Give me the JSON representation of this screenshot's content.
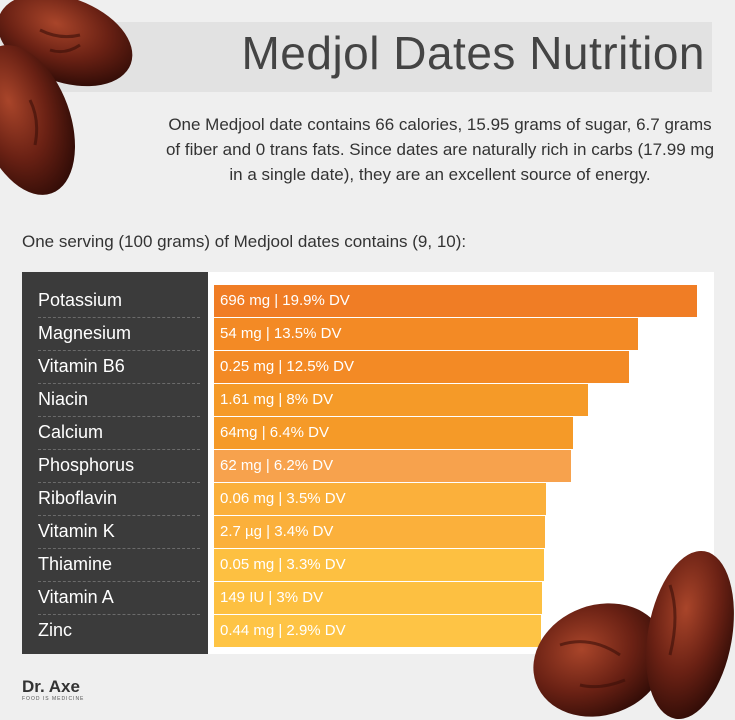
{
  "title": "Medjol Dates Nutrition",
  "intro": "One Medjool date contains 66 calories, 15.95 grams of sugar, 6.7 grams of fiber and 0 trans fats. Since dates are naturally rich in carbs (17.99 mg in a single date), they are an excellent source of energy.",
  "serving": "One serving (100 grams) of Medjool dates contains (9, 10):",
  "logo": {
    "main": "Dr. Axe",
    "sub": "FOOD IS MEDICINE"
  },
  "chart_data": {
    "type": "bar",
    "orientation": "horizontal",
    "unit": "% DV",
    "categories": [
      "Potassium",
      "Magnesium",
      "Vitamin B6",
      "Niacin",
      "Calcium",
      "Phosphorus",
      "Riboflavin",
      "Vitamin K",
      "Thiamine",
      "Vitamin A",
      "Zinc"
    ],
    "values": [
      19.9,
      13.5,
      12.5,
      8,
      6.4,
      6.2,
      3.5,
      3.4,
      3.3,
      3,
      2.9
    ],
    "bar_labels": [
      "696 mg | 19.9% DV",
      "54 mg | 13.5% DV",
      "0.25 mg | 12.5% DV",
      "1.61 mg | 8% DV",
      "64mg | 6.4% DV",
      "62 mg | 6.2% DV",
      "0.06 mg | 3.5% DV",
      "2.7 µg | 3.4% DV",
      "0.05 mg | 3.3% DV",
      "149 IU | 3% DV",
      "0.44 mg | 2.9% DV"
    ],
    "bar_colors": [
      "#f07d25",
      "#f38a25",
      "#f38a25",
      "#f59a28",
      "#f59a28",
      "#f7a24d",
      "#fbb03b",
      "#fbb03b",
      "#fdc041",
      "#fdc041",
      "#fec445"
    ],
    "label_column_color": "#3b3b3b"
  }
}
